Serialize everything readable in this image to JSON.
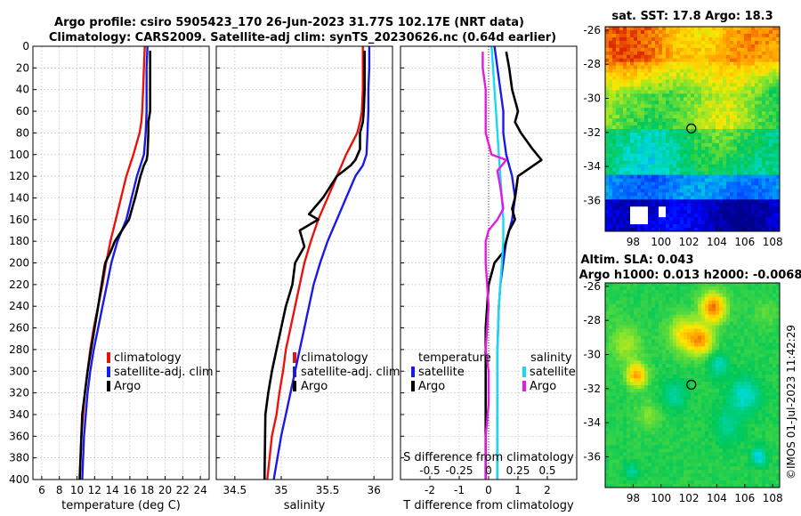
{
  "titles": {
    "line1": "Argo profile: csiro 5905423_170 26-Jun-2023 31.77S 102.17E (NRT data)",
    "line2": "Climatology: CARS2009. Satellite-adj clim: synTS_20230626.nc (0.64d earlier)",
    "sst": "sat. SST: 17.8 Argo: 18.3",
    "sla1": "Altim. SLA: 0.043",
    "sla2": "Argo h1000: 0.013 h2000: -0.0068"
  },
  "copyright": "©IMOS 01-Jul-2023 11:42:29",
  "colors": {
    "climatology": "#e8140c",
    "satellite": "#1a1ae6",
    "argo": "#000000",
    "sat_salinity": "#19d9ee",
    "argo_salinity": "#e619e0"
  },
  "chart_data": [
    {
      "type": "line",
      "name": "temperature",
      "xlabel": "temperature (deg C)",
      "xlim": [
        5,
        25
      ],
      "xticks": [
        6,
        8,
        10,
        12,
        14,
        16,
        18,
        20,
        22,
        24
      ],
      "ylim": [
        0,
        400
      ],
      "yticks": [
        0,
        20,
        40,
        60,
        80,
        100,
        120,
        140,
        160,
        180,
        200,
        220,
        240,
        260,
        280,
        300,
        320,
        340,
        360,
        380,
        400
      ],
      "grid": true,
      "legend": [
        "climatology",
        "satellite-adj. clim",
        "Argo"
      ],
      "series": [
        {
          "name": "climatology",
          "color_key": "climatology",
          "x": [
            17.7,
            17.6,
            17.5,
            17.4,
            17.3,
            17.1,
            16.4,
            15.6,
            15.0,
            14.4,
            13.8,
            13.3,
            12.9,
            12.4,
            11.9,
            11.5,
            11.2,
            10.9,
            10.7,
            10.5,
            10.3
          ],
          "y": [
            0,
            20,
            40,
            60,
            70,
            80,
            100,
            120,
            140,
            160,
            180,
            200,
            220,
            240,
            260,
            280,
            300,
            320,
            340,
            360,
            400
          ]
        },
        {
          "name": "satellite-adj. clim",
          "color_key": "satellite",
          "x": [
            18.0,
            17.9,
            17.9,
            17.9,
            17.8,
            17.6,
            17.2,
            16.8,
            16.2,
            15.6,
            14.6,
            13.9,
            13.4,
            12.9,
            12.4,
            11.9,
            11.5,
            11.2,
            11.0,
            10.8,
            10.6
          ],
          "y": [
            0,
            20,
            40,
            60,
            80,
            100,
            110,
            120,
            140,
            160,
            180,
            200,
            220,
            240,
            260,
            280,
            300,
            320,
            340,
            360,
            400
          ]
        },
        {
          "name": "Argo",
          "color_key": "argo",
          "x": [
            18.3,
            18.3,
            18.3,
            18.3,
            18.1,
            18.1,
            18.0,
            17.9,
            17.6,
            17.2,
            16.6,
            15.9,
            15.1,
            14.3,
            13.8,
            13.2,
            12.8,
            12.4,
            12.0,
            11.6,
            11.2,
            10.9,
            10.6,
            10.3
          ],
          "y": [
            5,
            20,
            40,
            60,
            70,
            80,
            100,
            105,
            110,
            120,
            140,
            160,
            170,
            180,
            190,
            200,
            220,
            240,
            260,
            280,
            300,
            320,
            340,
            400
          ]
        }
      ]
    },
    {
      "type": "line",
      "name": "salinity",
      "xlabel": "salinity",
      "xlim": [
        34.3,
        36.2
      ],
      "xticks": [
        34.5,
        35,
        35.5,
        36
      ],
      "ylim": [
        0,
        400
      ],
      "grid": true,
      "legend": [
        "climatology",
        "satellite-adj. clim",
        "Argo"
      ],
      "series": [
        {
          "name": "climatology",
          "color_key": "climatology",
          "x": [
            35.88,
            35.88,
            35.88,
            35.87,
            35.85,
            35.82,
            35.7,
            35.6,
            35.5,
            35.4,
            35.32,
            35.25,
            35.2,
            35.15,
            35.1,
            35.05,
            35.02,
            34.98,
            34.95,
            34.9,
            34.85
          ],
          "y": [
            0,
            20,
            40,
            60,
            70,
            80,
            100,
            120,
            140,
            160,
            180,
            200,
            220,
            240,
            260,
            280,
            300,
            320,
            340,
            360,
            400
          ]
        },
        {
          "name": "satellite-adj. clim",
          "color_key": "satellite",
          "x": [
            35.95,
            35.95,
            35.94,
            35.94,
            35.93,
            35.92,
            35.88,
            35.8,
            35.7,
            35.6,
            35.5,
            35.42,
            35.35,
            35.3,
            35.25,
            35.2,
            35.15,
            35.1,
            35.05,
            35.0,
            34.92
          ],
          "y": [
            0,
            20,
            40,
            60,
            80,
            100,
            110,
            120,
            140,
            160,
            180,
            200,
            220,
            240,
            260,
            280,
            300,
            320,
            340,
            360,
            400
          ]
        },
        {
          "name": "Argo",
          "color_key": "argo",
          "x": [
            35.9,
            35.9,
            35.9,
            35.89,
            35.88,
            35.85,
            35.85,
            35.8,
            35.75,
            35.6,
            35.45,
            35.3,
            35.4,
            35.2,
            35.25,
            35.15,
            35.12,
            35.05,
            35.0,
            34.95,
            34.9,
            34.86,
            34.83,
            34.82
          ],
          "y": [
            5,
            20,
            40,
            60,
            70,
            80,
            95,
            105,
            110,
            120,
            140,
            155,
            160,
            170,
            185,
            200,
            220,
            240,
            260,
            280,
            300,
            320,
            340,
            400
          ]
        }
      ]
    },
    {
      "type": "line",
      "name": "difference",
      "xlabel": "T difference from climatology",
      "xlabel2": "S difference from climatology",
      "xlim": [
        -3,
        3
      ],
      "xticks": [
        -2,
        -1,
        0,
        1,
        2
      ],
      "s_xticks": [
        "-0.5",
        "-0.25",
        "0",
        "0.25",
        "0.5"
      ],
      "ylim": [
        0,
        400
      ],
      "grid": true,
      "legend_temp_header": "temperature",
      "legend_sal_header": "salinity",
      "legend_temp": [
        "satellite",
        "Argo"
      ],
      "legend_sal": [
        "satellite",
        "Argo"
      ],
      "series": [
        {
          "name": "temperature satellite",
          "color_key": "satellite",
          "x": [
            0.2,
            0.3,
            0.4,
            0.5,
            0.5,
            0.6,
            0.7,
            0.8,
            0.9,
            0.8,
            0.6,
            0.5,
            0.4,
            0.35,
            0.3,
            0.3,
            0.3,
            0.3,
            0.3
          ],
          "y": [
            0,
            20,
            40,
            60,
            80,
            100,
            110,
            120,
            140,
            160,
            180,
            200,
            220,
            240,
            280,
            320,
            360,
            380,
            400
          ]
        },
        {
          "name": "temperature Argo",
          "color_key": "argo",
          "x": [
            0.6,
            0.7,
            0.8,
            1.0,
            0.9,
            1.1,
            1.5,
            1.8,
            1.0,
            0.9,
            0.8,
            0.9,
            0.7,
            0.6,
            0.5,
            0.2,
            0.0,
            -0.1,
            -0.1,
            -0.1,
            -0.1
          ],
          "y": [
            5,
            20,
            40,
            60,
            70,
            80,
            95,
            105,
            120,
            140,
            150,
            160,
            170,
            180,
            190,
            200,
            220,
            260,
            300,
            360,
            400
          ]
        },
        {
          "name": "salinity satellite",
          "color_key": "sat_salinity",
          "x": [
            0.1,
            0.15,
            0.2,
            0.25,
            0.3,
            0.35,
            0.4,
            0.45,
            0.5,
            0.5,
            0.45,
            0.4,
            0.35,
            0.3,
            0.3,
            0.3,
            0.3
          ],
          "y": [
            0,
            20,
            40,
            60,
            80,
            100,
            120,
            140,
            160,
            180,
            200,
            220,
            240,
            280,
            320,
            360,
            400
          ]
        },
        {
          "name": "salinity Argo",
          "color_key": "argo_salinity",
          "x": [
            -0.2,
            -0.2,
            -0.1,
            -0.1,
            -0.1,
            0.1,
            0.6,
            0.3,
            0.4,
            0.5,
            0.3,
            0.0,
            -0.1,
            -0.1,
            0.0,
            -0.1,
            0.0,
            0.0,
            -0.1,
            -0.1
          ],
          "y": [
            5,
            20,
            40,
            60,
            80,
            100,
            105,
            115,
            130,
            150,
            160,
            170,
            180,
            200,
            240,
            280,
            300,
            330,
            360,
            400
          ]
        }
      ]
    },
    {
      "type": "heatmap",
      "name": "sst-map",
      "title": "sat. SST: 17.8 Argo: 18.3",
      "xlim": [
        96,
        108.5
      ],
      "ylim": [
        -37.8,
        -25.8
      ],
      "xticks": [
        98,
        100,
        102,
        104,
        106,
        108
      ],
      "yticks": [
        -26,
        -28,
        -30,
        -32,
        -34,
        -36
      ],
      "marker": {
        "lon": 102.17,
        "lat": -31.77
      }
    },
    {
      "type": "heatmap",
      "name": "sla-map",
      "title": "Altim. SLA: 0.043",
      "subtitle": "Argo h1000: 0.013 h2000: -0.0068",
      "xlim": [
        96,
        108.5
      ],
      "ylim": [
        -37.8,
        -25.8
      ],
      "xticks": [
        98,
        100,
        102,
        104,
        106,
        108
      ],
      "yticks": [
        -26,
        -28,
        -30,
        -32,
        -34,
        -36
      ],
      "marker": {
        "lon": 102.17,
        "lat": -31.77
      }
    }
  ]
}
